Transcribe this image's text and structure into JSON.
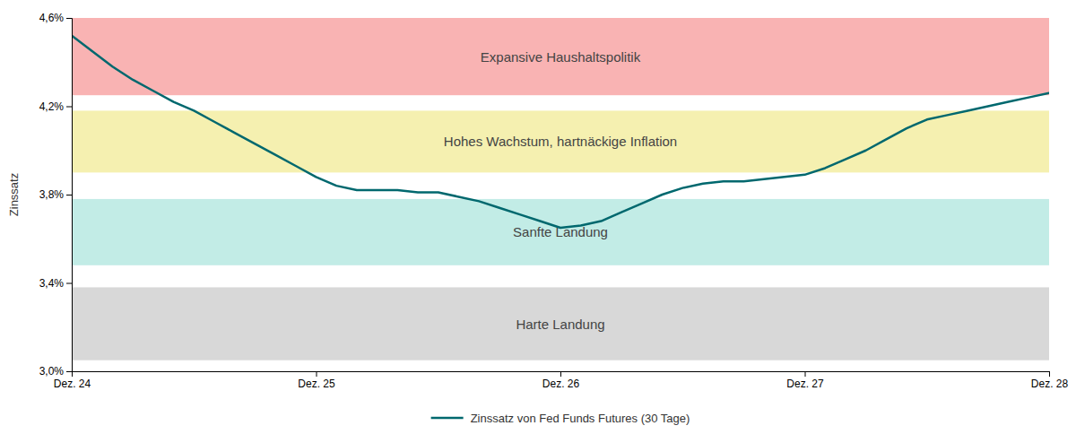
{
  "chart_data": {
    "type": "line",
    "ylabel": "Zinssatz",
    "categories": [
      "Dez. 24",
      null,
      null,
      null,
      null,
      null,
      null,
      null,
      null,
      null,
      null,
      null,
      "Dez. 25",
      null,
      null,
      null,
      null,
      null,
      null,
      null,
      null,
      null,
      null,
      null,
      "Dez. 26",
      null,
      null,
      null,
      null,
      null,
      null,
      null,
      null,
      null,
      null,
      null,
      "Dez. 27",
      null,
      null,
      null,
      null,
      null,
      null,
      null,
      null,
      null,
      null,
      null,
      "Dez. 28"
    ],
    "series": [
      {
        "name": "Zinssatz von Fed Funds Futures (30 Tage)",
        "color": "#00686e",
        "values": [
          0.0452,
          0.0445,
          0.0438,
          0.0432,
          0.0427,
          0.0422,
          0.0418,
          0.0413,
          0.0408,
          0.0403,
          0.0398,
          0.0393,
          0.0388,
          0.0384,
          0.0382,
          0.0382,
          0.0382,
          0.0381,
          0.0381,
          0.0379,
          0.0377,
          0.0374,
          0.0371,
          0.0368,
          0.0365,
          0.0366,
          0.0368,
          0.0372,
          0.0376,
          0.038,
          0.0383,
          0.0385,
          0.0386,
          0.0386,
          0.0387,
          0.0388,
          0.0389,
          0.0392,
          0.0396,
          0.04,
          0.0405,
          0.041,
          0.0414,
          0.0416,
          0.0418,
          0.042,
          0.0422,
          0.0424,
          0.0426
        ]
      }
    ],
    "ylim": [
      0.03,
      0.046
    ],
    "yticks": [
      {
        "value": 0.03,
        "label": "3,0%"
      },
      {
        "value": 0.034,
        "label": "3,4%"
      },
      {
        "value": 0.038,
        "label": "3,8%"
      },
      {
        "value": 0.042,
        "label": "4,2%"
      },
      {
        "value": 0.046,
        "label": "4,6%"
      }
    ],
    "bands": [
      {
        "ymin": 0.0425,
        "ymax": 0.046,
        "color": "#f9b3b3",
        "label": "Expansive Haushaltspolitik"
      },
      {
        "ymin": 0.039,
        "ymax": 0.0418,
        "color": "#f5f0b0",
        "label": "Hohes Wachstum, hartnäckige Inflation"
      },
      {
        "ymin": 0.0348,
        "ymax": 0.0378,
        "color": "#c2ece6",
        "label": "Sanfte Landung"
      },
      {
        "ymin": 0.0305,
        "ymax": 0.0338,
        "color": "#d8d8d8",
        "label": "Harte Landung"
      }
    ],
    "grid": false,
    "legend": "bottom"
  }
}
